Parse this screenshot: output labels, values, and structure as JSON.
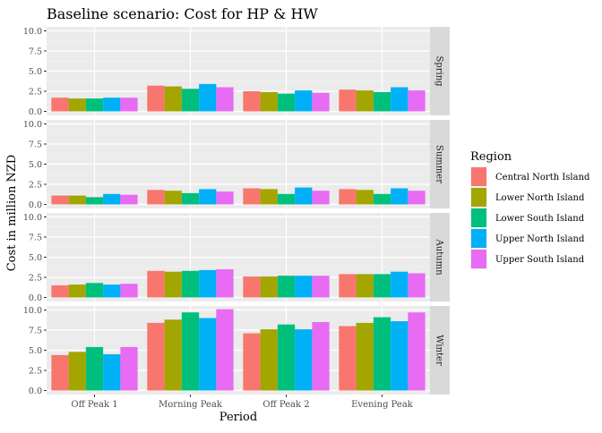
{
  "chart_data": {
    "type": "bar",
    "title": "Baseline scenario: Cost for HP & HW",
    "xlabel": "Period",
    "ylabel": "Cost in million NZD",
    "ylim": [
      0,
      10
    ],
    "yticks": [
      "0.0",
      "2.5",
      "5.0",
      "7.5",
      "10.0"
    ],
    "categories": [
      "Off Peak 1",
      "Morning Peak",
      "Off Peak 2",
      "Evening Peak"
    ],
    "legend": {
      "title": "Region",
      "position": "right",
      "entries": [
        "Central North Island",
        "Lower North Island",
        "Lower South Island",
        "Upper North Island",
        "Upper South Island"
      ]
    },
    "colors": [
      "#F8766D",
      "#A3A500",
      "#00BF7D",
      "#00B0F6",
      "#E76BF3"
    ],
    "grid": true,
    "facets": [
      {
        "name": "Spring",
        "series": [
          {
            "name": "Central North Island",
            "values": [
              1.7,
              3.2,
              2.5,
              2.7
            ]
          },
          {
            "name": "Lower North Island",
            "values": [
              1.6,
              3.1,
              2.4,
              2.6
            ]
          },
          {
            "name": "Lower South Island",
            "values": [
              1.6,
              2.8,
              2.2,
              2.4
            ]
          },
          {
            "name": "Upper North Island",
            "values": [
              1.7,
              3.4,
              2.6,
              3.0
            ]
          },
          {
            "name": "Upper South Island",
            "values": [
              1.7,
              3.0,
              2.3,
              2.6
            ]
          }
        ]
      },
      {
        "name": "Summer",
        "series": [
          {
            "name": "Central North Island",
            "values": [
              1.1,
              1.8,
              2.0,
              1.9
            ]
          },
          {
            "name": "Lower North Island",
            "values": [
              1.1,
              1.7,
              1.9,
              1.8
            ]
          },
          {
            "name": "Lower South Island",
            "values": [
              0.9,
              1.4,
              1.3,
              1.3
            ]
          },
          {
            "name": "Upper North Island",
            "values": [
              1.3,
              1.9,
              2.1,
              2.0
            ]
          },
          {
            "name": "Upper South Island",
            "values": [
              1.2,
              1.6,
              1.7,
              1.7
            ]
          }
        ]
      },
      {
        "name": "Autumn",
        "series": [
          {
            "name": "Central North Island",
            "values": [
              1.5,
              3.3,
              2.6,
              2.9
            ]
          },
          {
            "name": "Lower North Island",
            "values": [
              1.6,
              3.2,
              2.6,
              2.9
            ]
          },
          {
            "name": "Lower South Island",
            "values": [
              1.8,
              3.3,
              2.7,
              2.9
            ]
          },
          {
            "name": "Upper North Island",
            "values": [
              1.6,
              3.4,
              2.7,
              3.2
            ]
          },
          {
            "name": "Upper South Island",
            "values": [
              1.7,
              3.5,
              2.7,
              3.0
            ]
          }
        ]
      },
      {
        "name": "Winter",
        "series": [
          {
            "name": "Central North Island",
            "values": [
              4.4,
              8.4,
              7.1,
              8.0
            ]
          },
          {
            "name": "Lower North Island",
            "values": [
              4.8,
              8.8,
              7.6,
              8.4
            ]
          },
          {
            "name": "Lower South Island",
            "values": [
              5.4,
              9.7,
              8.2,
              9.1
            ]
          },
          {
            "name": "Upper North Island",
            "values": [
              4.5,
              9.0,
              7.6,
              8.6
            ]
          },
          {
            "name": "Upper South Island",
            "values": [
              5.4,
              10.1,
              8.5,
              9.7
            ]
          }
        ]
      }
    ]
  }
}
